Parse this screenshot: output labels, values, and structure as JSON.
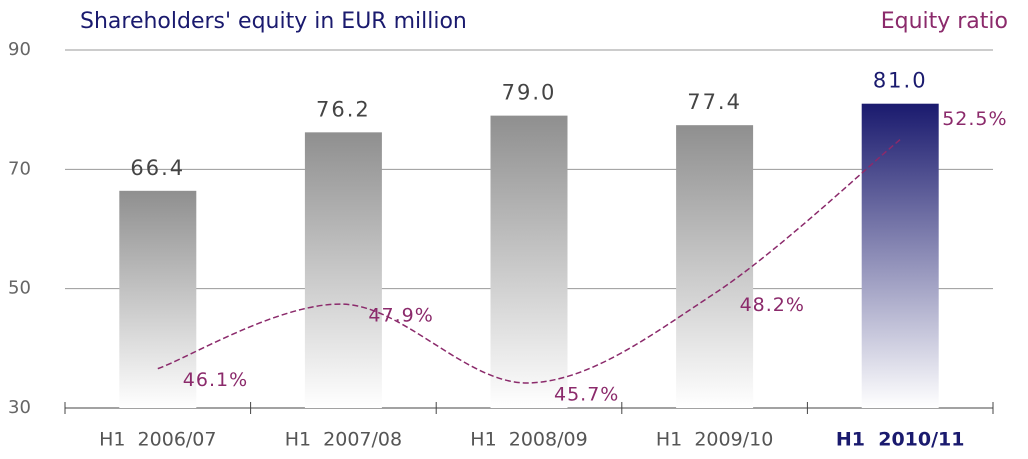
{
  "chart_data": {
    "type": "bar",
    "title": "Shareholders' equity in EUR million",
    "categories": [
      "H1  2006/07",
      "H1  2007/08",
      "H1  2008/09",
      "H1  2009/10",
      "H1  2010/11"
    ],
    "category_colors": [
      "#555555",
      "#555555",
      "#555555",
      "#555555",
      "#1a1a6e"
    ],
    "series": [
      {
        "type": "bar",
        "values": [
          66.4,
          76.2,
          79.0,
          77.4,
          81.0
        ],
        "value_labels": [
          "66.4",
          "76.2",
          "79.0",
          "77.4",
          "81.0"
        ],
        "colors": [
          "#8f8f8f",
          "#8f8f8f",
          "#8f8f8f",
          "#8f8f8f",
          "#1a1a6e"
        ]
      },
      {
        "type": "line",
        "name": "Equity ratio",
        "axis": "y2",
        "color": "#8b2a6b",
        "values": [
          46.1,
          47.9,
          45.7,
          48.2,
          52.5
        ],
        "value_labels": [
          "46.1%",
          "47.9%",
          "45.7%",
          "48.2%",
          "52.5%"
        ]
      }
    ],
    "ylim": [
      30,
      90
    ],
    "yticks": [
      30,
      50,
      70,
      90
    ],
    "y2lim": [
      45,
      55
    ],
    "grid": true
  }
}
